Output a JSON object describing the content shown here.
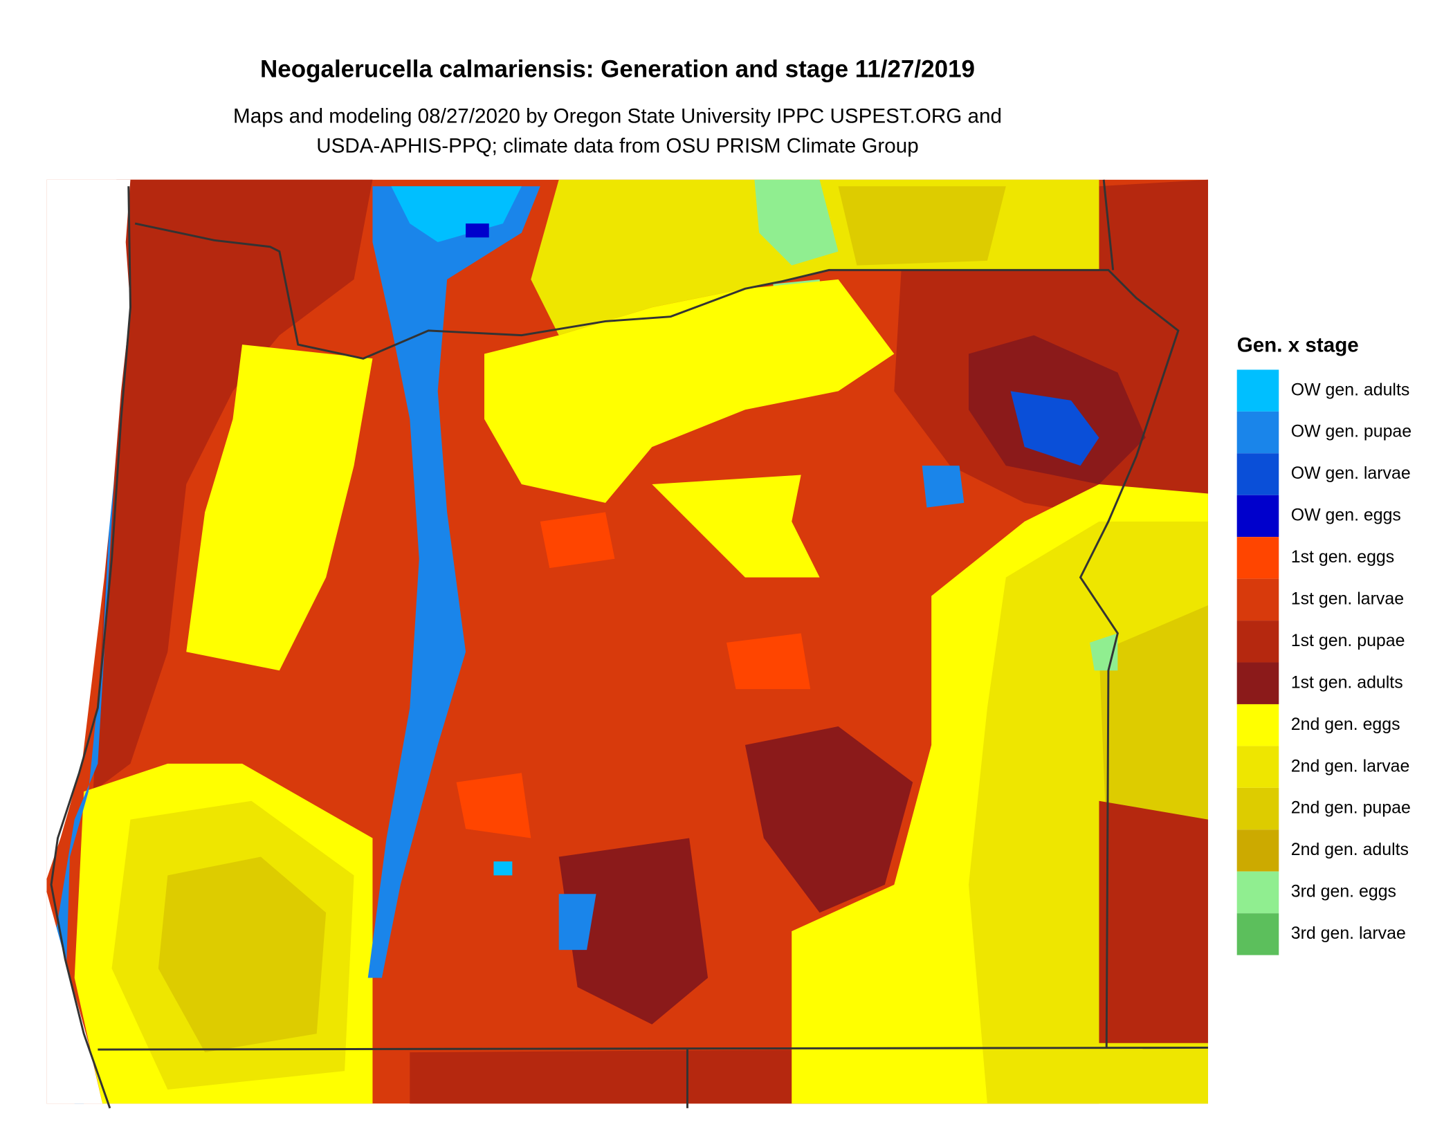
{
  "title": "Neogalerucella calmariensis: Generation and stage 11/27/2019",
  "subtitle": [
    "Maps and modeling 08/27/2020 by Oregon State University IPPC USPEST.ORG and",
    "USDA-APHIS-PPQ; climate data from OSU PRISM Climate Group"
  ],
  "legend": {
    "title": "Gen. x stage",
    "items": [
      {
        "label": "OW gen. adults",
        "color": "#00bfff"
      },
      {
        "label": "OW gen. pupae",
        "color": "#1a85ea"
      },
      {
        "label": "OW gen. larvae",
        "color": "#0a4fd8"
      },
      {
        "label": "OW gen. eggs",
        "color": "#0000cc"
      },
      {
        "label": "1st gen. eggs",
        "color": "#ff4500"
      },
      {
        "label": "1st gen. larvae",
        "color": "#d83a0c"
      },
      {
        "label": "1st gen. pupae",
        "color": "#b5280f"
      },
      {
        "label": "1st gen. adults",
        "color": "#8b1a1a"
      },
      {
        "label": "2nd gen. eggs",
        "color": "#ffff00"
      },
      {
        "label": "2nd gen. larvae",
        "color": "#eee600"
      },
      {
        "label": "2nd gen. pupae",
        "color": "#ddcc00"
      },
      {
        "label": "2nd gen. adults",
        "color": "#ccaa00"
      },
      {
        "label": "3rd gen. eggs",
        "color": "#90ee90"
      },
      {
        "label": "3rd gen. larvae",
        "color": "#5cbf5c"
      }
    ]
  }
}
